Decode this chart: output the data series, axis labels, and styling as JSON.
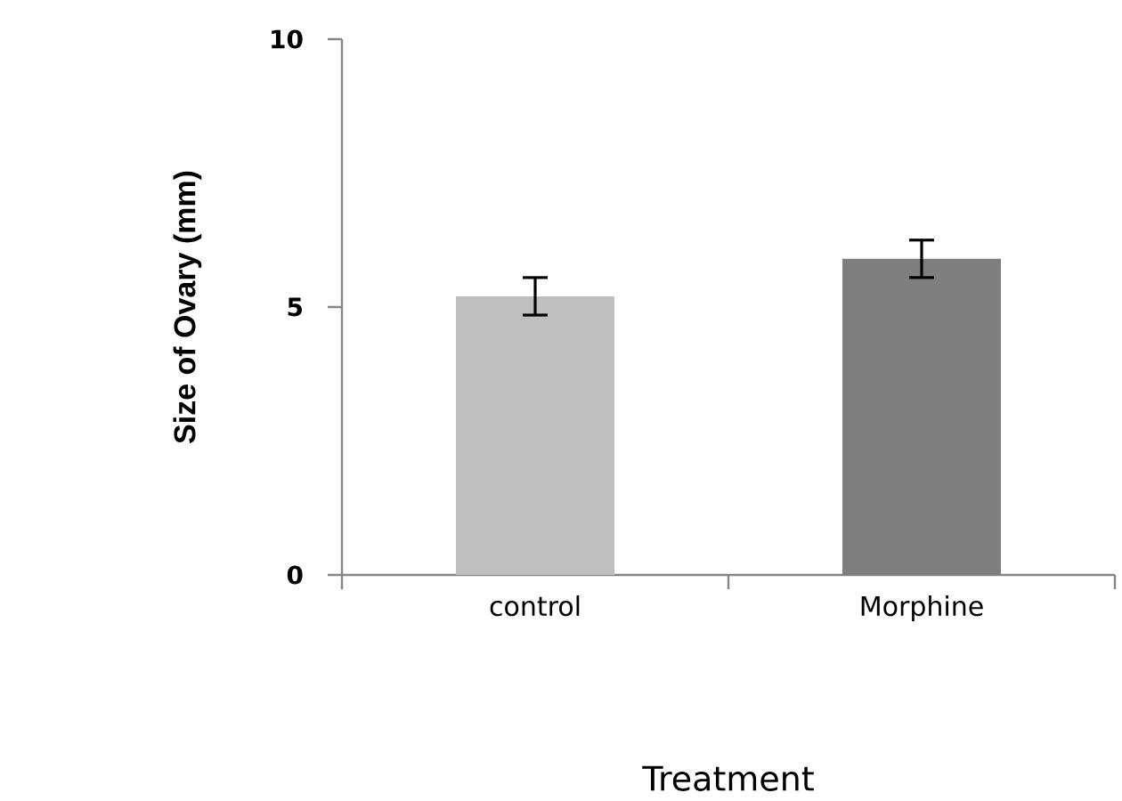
{
  "chart_data": {
    "type": "bar",
    "xlabel": "Treatment",
    "ylabel": "Size of Ovary (mm)",
    "categories": [
      "control",
      "Morphine"
    ],
    "values": [
      5.2,
      5.9
    ],
    "errors": [
      0.35,
      0.35
    ],
    "colors": [
      "#bfbfbf",
      "#7f7f7f"
    ],
    "ylim": [
      0,
      10
    ],
    "yticks": [
      0,
      5,
      10
    ]
  }
}
